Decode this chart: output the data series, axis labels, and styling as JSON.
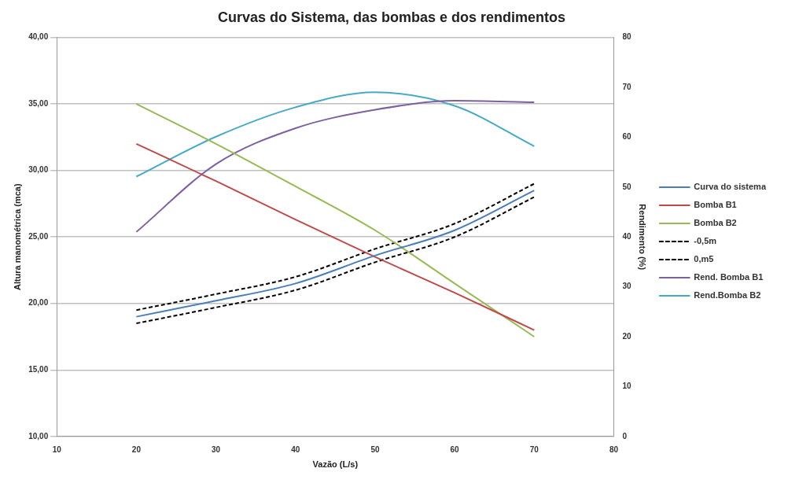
{
  "chart_data": {
    "type": "line",
    "title": "Curvas do Sistema, das bombas e dos rendimentos",
    "xlabel": "Vazão (L/s)",
    "ylabel": "Altura manométrica (mca)",
    "y2label": "Rendimento (%)",
    "x": [
      20,
      30,
      40,
      50,
      60,
      70
    ],
    "series": [
      {
        "name": "Curva do sistema",
        "color": "#4a7ebb",
        "values": [
          19.0,
          20.2,
          21.5,
          23.6,
          25.5,
          28.5
        ]
      },
      {
        "name": "Bomba B1",
        "color": "#be4b48",
        "values": [
          32.0,
          29.2,
          26.3,
          23.5,
          20.8,
          18.0
        ]
      },
      {
        "name": "Bomba B2",
        "color": "#98b954",
        "values": [
          35.0,
          32.0,
          28.8,
          25.5,
          21.5,
          17.5
        ]
      },
      {
        "name": "-0,5m",
        "color": "#000000",
        "line_style": "dashed",
        "values": [
          18.5,
          19.7,
          21.0,
          23.1,
          25.0,
          28.0
        ]
      },
      {
        "name": "0,m5",
        "color": "#000000",
        "line_style": "dashed",
        "values": [
          19.5,
          20.7,
          22.0,
          24.1,
          26.0,
          29.0
        ]
      },
      {
        "name": "Rend. Bomba B1",
        "color": "#7d60a0",
        "axis": "y2",
        "values": [
          41,
          54.6,
          61.8,
          65.5,
          67.3,
          67.0
        ]
      },
      {
        "name": "Rend.Bomba B2",
        "color": "#46aac5",
        "axis": "y2",
        "values": [
          52.1,
          60.1,
          66.0,
          69.0,
          66.3,
          58.2
        ]
      }
    ],
    "xlim": [
      10,
      80
    ],
    "xticks": [
      10,
      20,
      30,
      40,
      50,
      60,
      70,
      80
    ],
    "ylim": [
      10,
      40
    ],
    "yticks": [
      {
        "value": 10,
        "label": "10,00"
      },
      {
        "value": 15,
        "label": "15,00"
      },
      {
        "value": 20,
        "label": "20,00"
      },
      {
        "value": 25,
        "label": "25,00"
      },
      {
        "value": 30,
        "label": "30,00"
      },
      {
        "value": 35,
        "label": "35,00"
      },
      {
        "value": 40,
        "label": "40,00"
      }
    ],
    "y2lim": [
      0,
      80
    ],
    "y2ticks": [
      0,
      10,
      20,
      30,
      40,
      50,
      60,
      70,
      80
    ],
    "grid": "y",
    "legend": "right",
    "marker": "none",
    "line_style": "solid"
  }
}
